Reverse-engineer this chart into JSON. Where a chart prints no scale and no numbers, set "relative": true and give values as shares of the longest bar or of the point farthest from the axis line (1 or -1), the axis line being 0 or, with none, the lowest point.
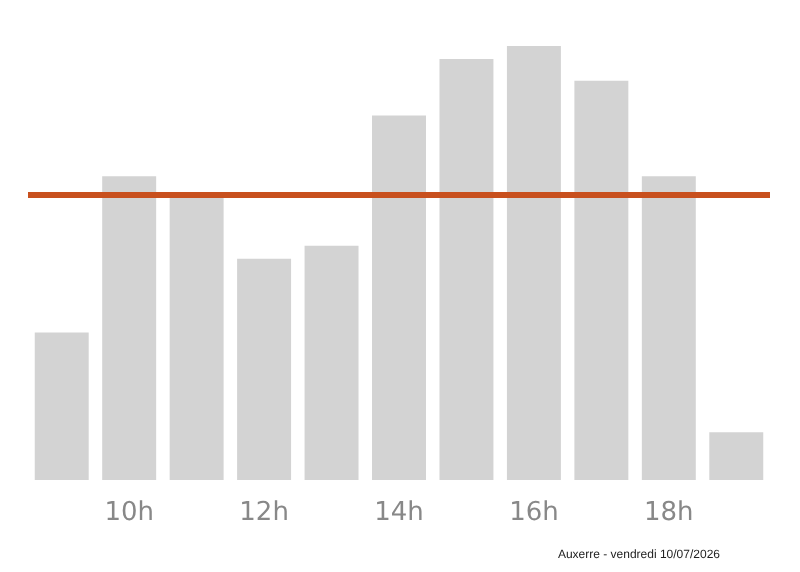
{
  "chart_data": {
    "type": "bar",
    "relative": true,
    "categories": [
      null,
      "10h",
      null,
      "12h",
      null,
      "14h",
      null,
      "16h",
      null,
      "18h",
      null
    ],
    "values": [
      0.34,
      0.7,
      0.65,
      0.51,
      0.54,
      0.84,
      0.97,
      1,
      0.92,
      0.7,
      0.11
    ],
    "color": "#d3d3d3",
    "ref_lines": [
      {
        "axis": "y",
        "value": 0.66,
        "color": "#c8501e"
      }
    ],
    "annotations": [
      "Auxerre - vendredi 10/07/2026"
    ]
  }
}
